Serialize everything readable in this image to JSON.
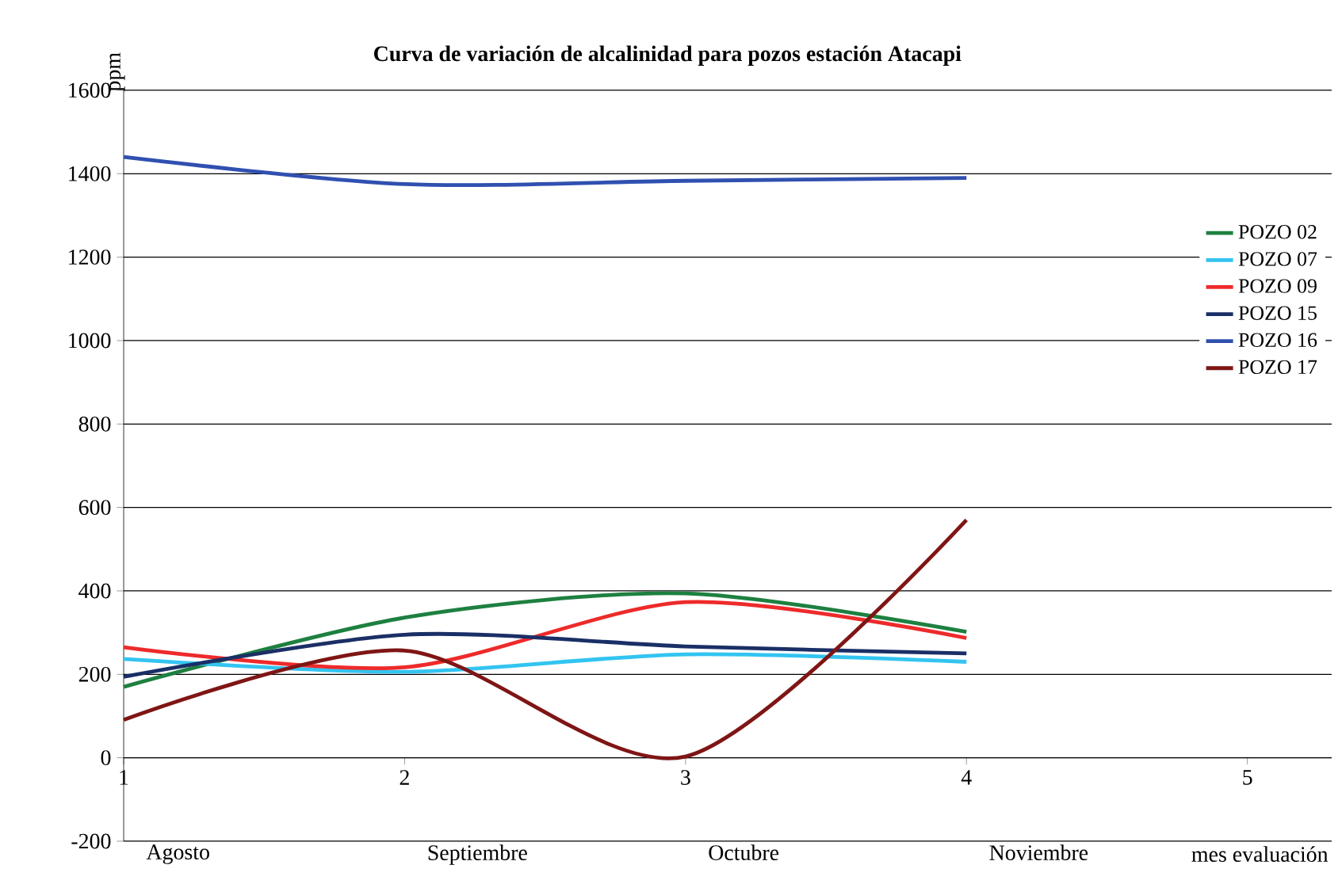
{
  "chart_data": {
    "type": "line",
    "title": "Curva de variación de alcalinidad para pozos estación Atacapi",
    "xlabel": "mes evaluación",
    "ylabel": "ppm",
    "x": [
      1,
      2,
      3,
      4
    ],
    "series": [
      {
        "name": "POZO 02",
        "color": "#1e8040",
        "values": [
          170,
          336,
          394,
          302
        ]
      },
      {
        "name": "POZO 07",
        "color": "#33c4f0",
        "values": [
          237,
          206,
          248,
          230
        ]
      },
      {
        "name": "POZO 09",
        "color": "#ee2a2a",
        "values": [
          265,
          217,
          373,
          287
        ]
      },
      {
        "name": "POZO 15",
        "color": "#1a2f66",
        "values": [
          194,
          295,
          267,
          250
        ]
      },
      {
        "name": "POZO 16",
        "color": "#3050b0",
        "values": [
          1440,
          1375,
          1383,
          1390
        ]
      },
      {
        "name": "POZO 17",
        "color": "#7f1515",
        "values": [
          91,
          257,
          3,
          570
        ]
      }
    ],
    "xlim": [
      1,
      5.3
    ],
    "xticks": [
      1,
      2,
      3,
      4,
      5
    ],
    "ylim": [
      -200,
      1600
    ],
    "yticks": [
      -200,
      0,
      200,
      400,
      600,
      800,
      1000,
      1200,
      1400,
      1600
    ],
    "grid": "y",
    "legend": "right",
    "marker": "none",
    "line_style": "solid",
    "annotations": [
      "Agosto",
      "Septiembre",
      "Octubre",
      "Noviembre"
    ]
  }
}
